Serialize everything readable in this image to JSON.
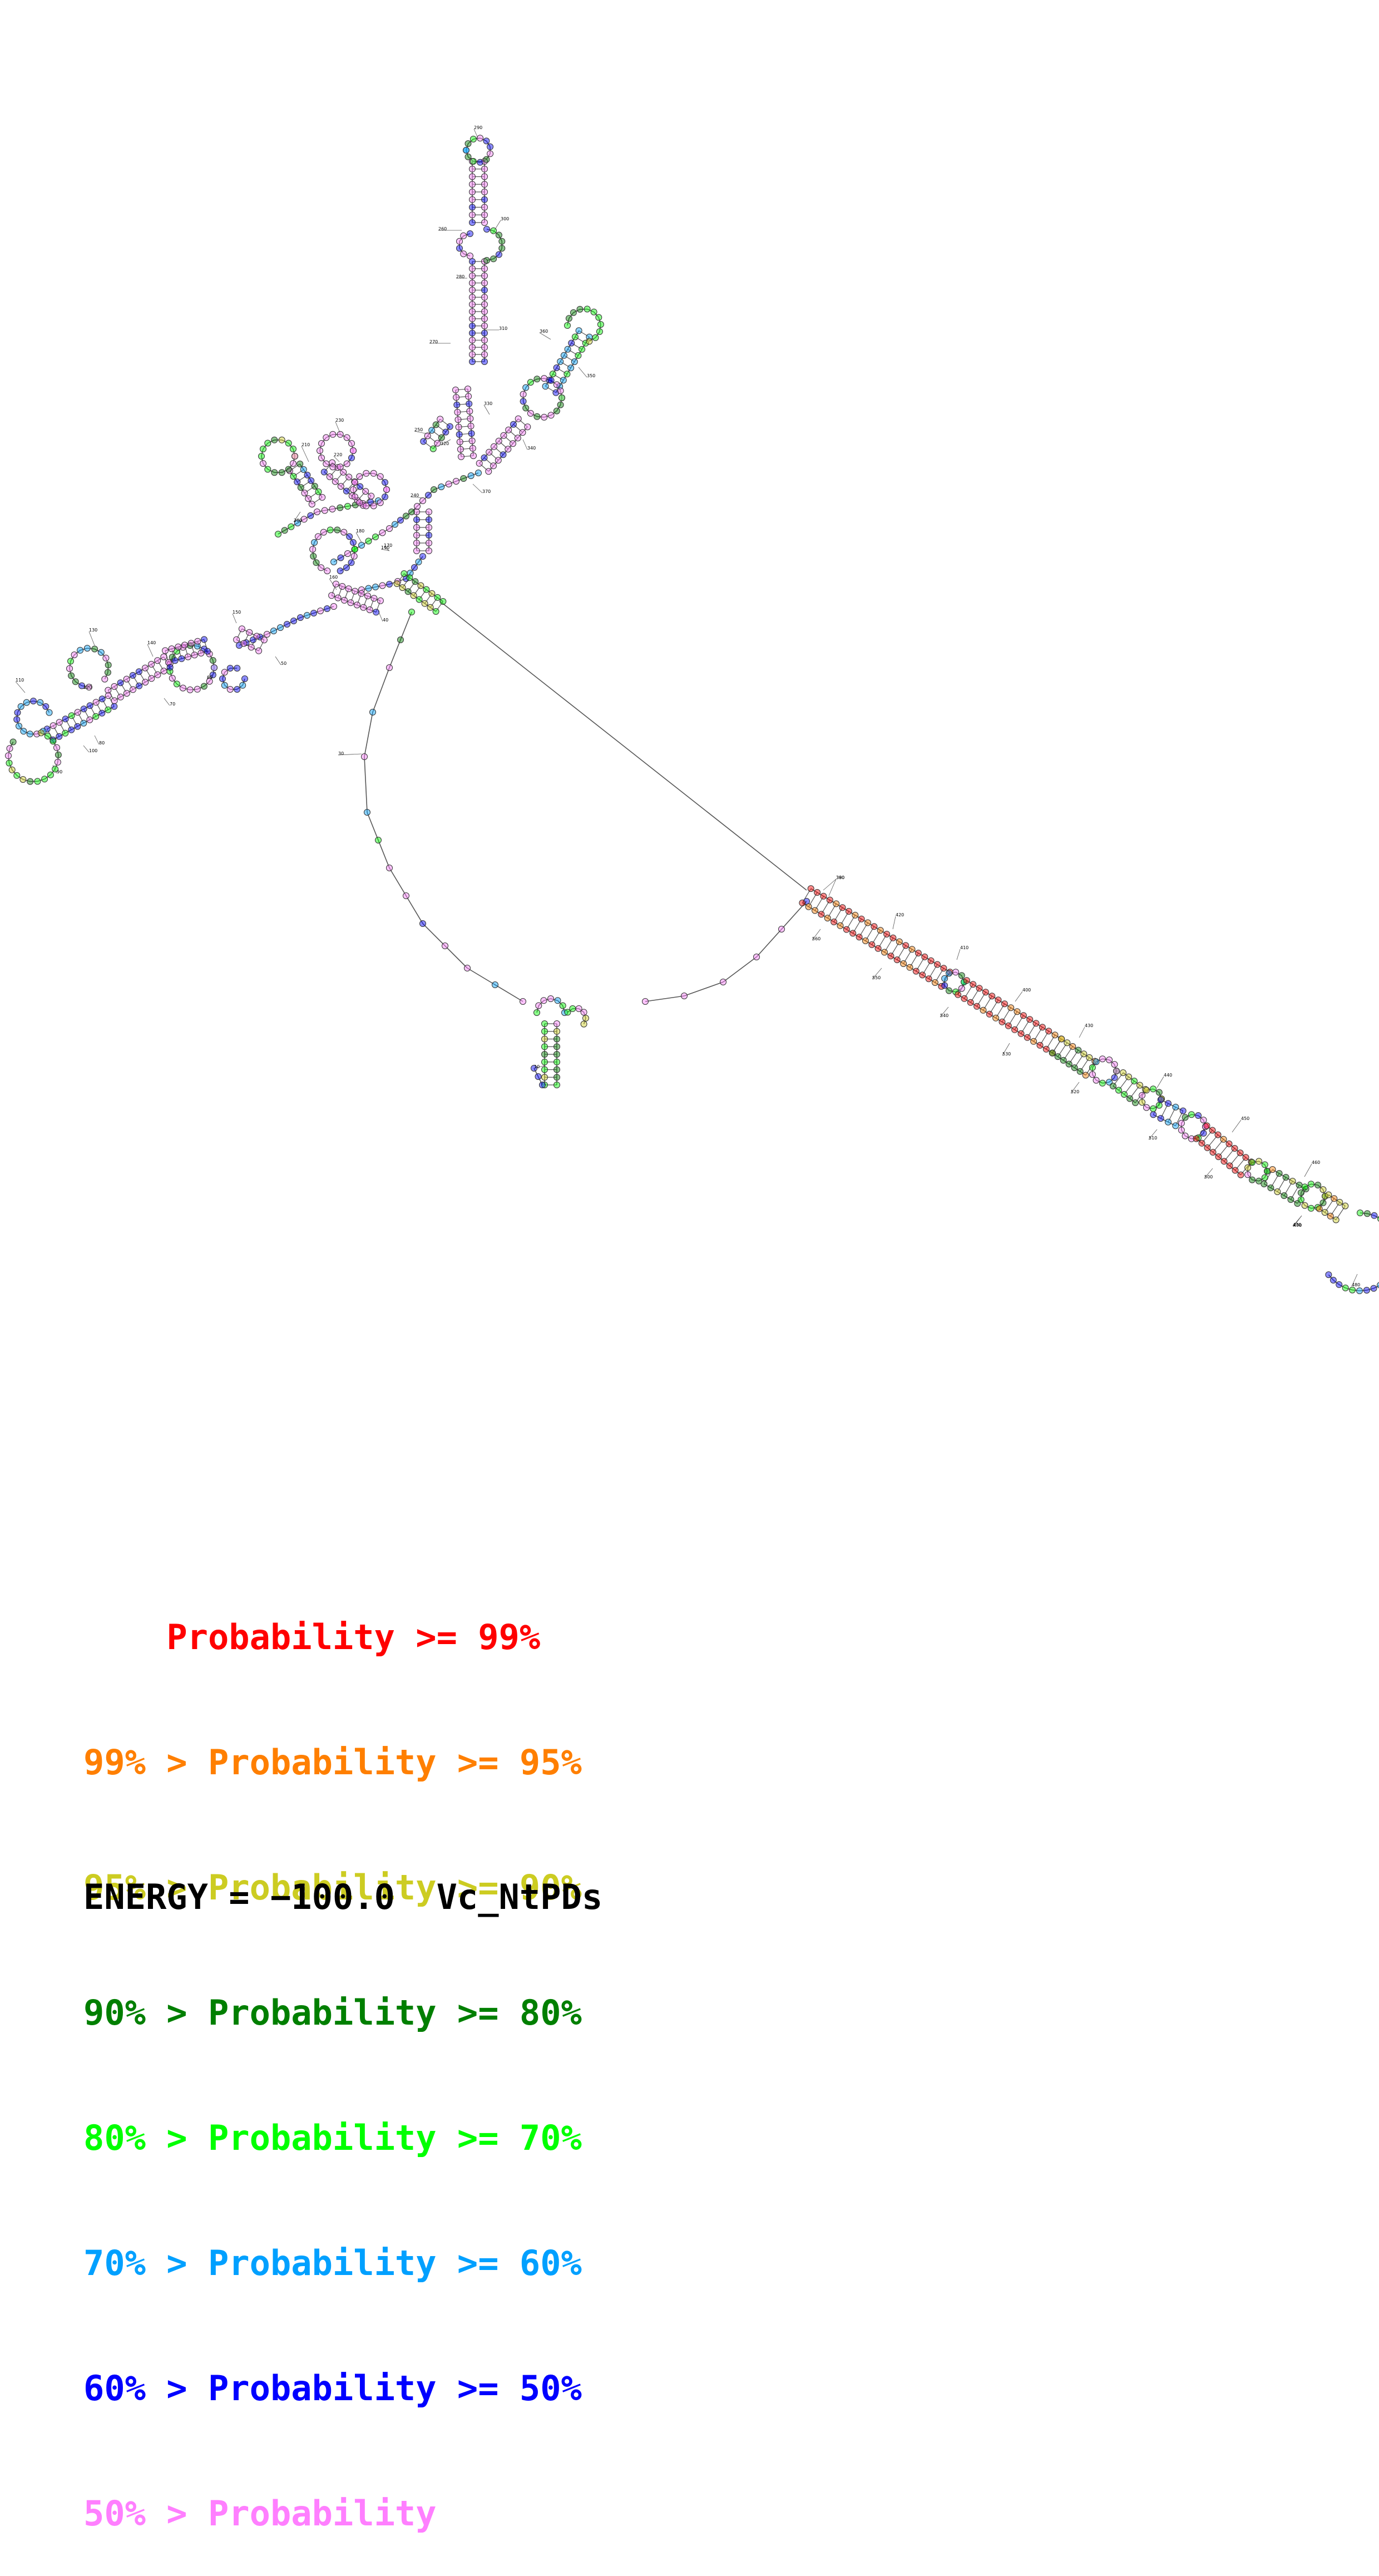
{
  "legend": [
    {
      "prefix": "    ",
      "label": "Probability >= 99%",
      "color": "#ff0000"
    },
    {
      "prefix": "99% > ",
      "label": "Probability >= 95%",
      "color": "#ff7f00"
    },
    {
      "prefix": "95% > ",
      "label": "Probability >= 90%",
      "color": "#cccc22"
    },
    {
      "prefix": "90% > ",
      "label": "Probability >= 80%",
      "color": "#007f00"
    },
    {
      "prefix": "80% > ",
      "label": "Probability >= 70%",
      "color": "#00ff00"
    },
    {
      "prefix": "70% > ",
      "label": "Probability >= 60%",
      "color": "#00a0ff"
    },
    {
      "prefix": "60% > ",
      "label": "Probability >= 50%",
      "color": "#0000ff"
    },
    {
      "prefix": "50% > ",
      "label": "Probability",
      "color": "#ff7fff"
    }
  ],
  "footer": {
    "energy": "ENERGY = −100.0",
    "name": "Vc_NtPDs"
  },
  "position_labels": [
    "10",
    "30",
    "40",
    "50",
    "60",
    "70",
    "80",
    "90",
    "100",
    "110",
    "120",
    "130",
    "140",
    "150",
    "160",
    "170",
    "180",
    "190",
    "200",
    "210",
    "220",
    "230",
    "240",
    "250",
    "260",
    "270",
    "280",
    "290",
    "300",
    "310",
    "320",
    "330",
    "340",
    "350",
    "360",
    "370",
    "380",
    "390",
    "400",
    "410",
    "420",
    "430",
    "440",
    "450",
    "460",
    "470",
    "480",
    "490",
    "500",
    "510",
    "520",
    "530",
    "540",
    "550",
    "560"
  ],
  "nucleotide_colors": {
    "p99": "#ff0000",
    "p95": "#ff7f00",
    "p90": "#cccc22",
    "p80": "#007f00",
    "p70": "#00ff00",
    "p60": "#00a0ff",
    "p50": "#0000ff",
    "plow": "#ff7fff"
  }
}
